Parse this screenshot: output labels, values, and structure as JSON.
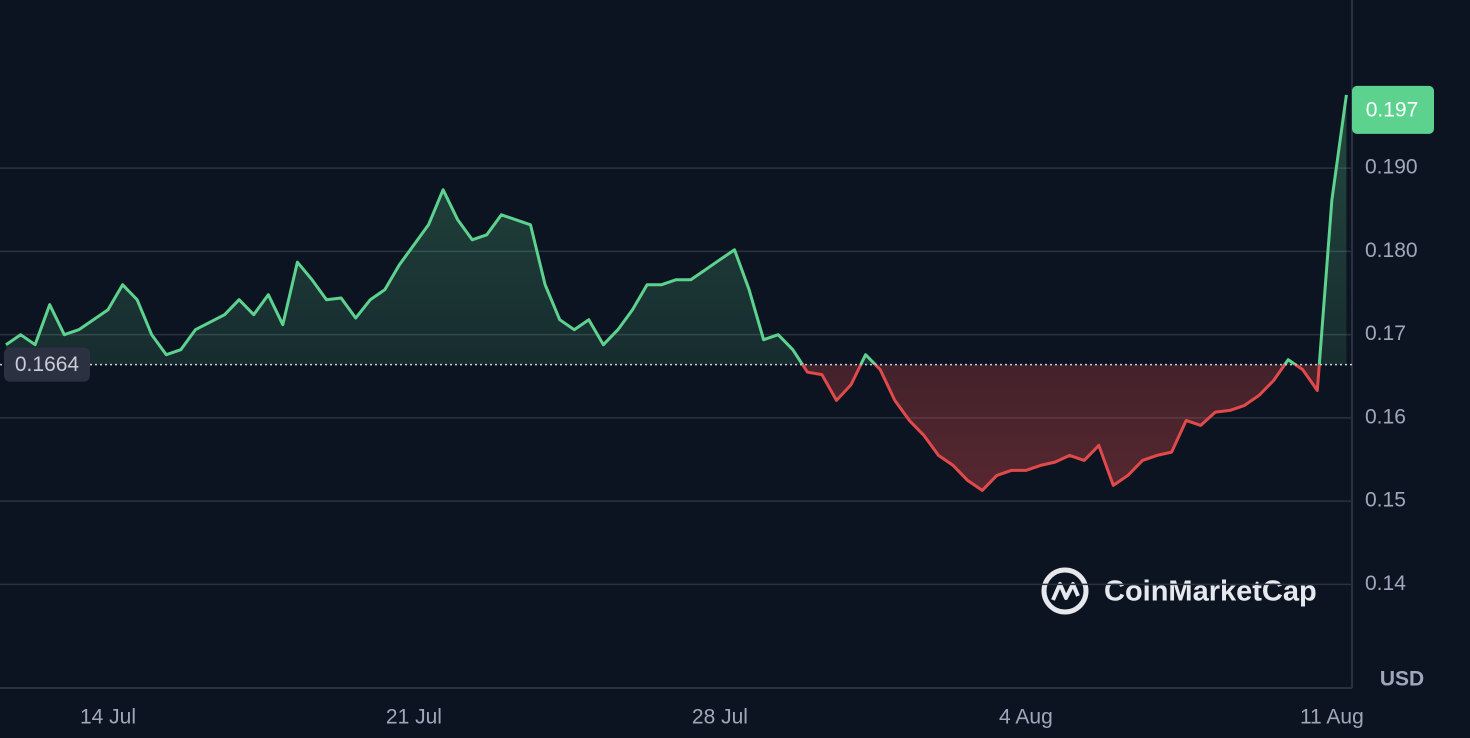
{
  "chart_data": {
    "type": "line",
    "categories": [
      null,
      null,
      null,
      null,
      null,
      null,
      null,
      "14 Jul",
      null,
      null,
      null,
      null,
      null,
      null,
      null,
      null,
      null,
      null,
      null,
      null,
      null,
      null,
      null,
      null,
      null,
      null,
      null,
      null,
      "21 Jul",
      null,
      null,
      null,
      null,
      null,
      null,
      null,
      null,
      null,
      null,
      null,
      null,
      null,
      null,
      null,
      null,
      null,
      null,
      null,
      null,
      "28 Jul",
      null,
      null,
      null,
      null,
      null,
      null,
      null,
      null,
      null,
      null,
      null,
      null,
      null,
      null,
      null,
      null,
      null,
      null,
      null,
      null,
      "4 Aug",
      null,
      null,
      null,
      null,
      null,
      null,
      null,
      null,
      null,
      null,
      null,
      null,
      null,
      null,
      null,
      null,
      null,
      null,
      null,
      null,
      "11 Aug",
      null
    ],
    "values": [
      0.1688,
      0.17,
      0.1688,
      0.1736,
      0.17,
      0.1706,
      0.1718,
      0.173,
      0.176,
      0.1742,
      0.17,
      0.1676,
      0.1682,
      0.1706,
      0.1715,
      0.1724,
      0.1742,
      0.1724,
      0.1748,
      0.1712,
      0.1787,
      0.1766,
      0.1742,
      0.1744,
      0.172,
      0.1742,
      0.1754,
      0.1784,
      0.1808,
      0.1832,
      0.1874,
      0.1838,
      0.1814,
      0.182,
      0.1844,
      0.1838,
      0.1832,
      0.176,
      0.1718,
      0.1706,
      0.1718,
      0.1688,
      0.1706,
      0.173,
      0.176,
      0.176,
      0.1766,
      0.1766,
      0.1778,
      0.179,
      0.1802,
      0.1754,
      0.1694,
      0.17,
      0.1682,
      0.1655,
      0.1652,
      0.1621,
      0.164,
      0.1676,
      0.1658,
      0.1621,
      0.1597,
      0.1579,
      0.1555,
      0.1543,
      0.1525,
      0.1513,
      0.1531,
      0.1537,
      0.1537,
      0.1543,
      0.1547,
      0.1555,
      0.1549,
      0.1567,
      0.1519,
      0.1531,
      0.1549,
      0.1555,
      0.1559,
      0.1597,
      0.1591,
      0.1607,
      0.1609,
      0.1615,
      0.1627,
      0.1645,
      0.167,
      0.1658,
      0.1633,
      0.1862,
      0.1988
    ],
    "baseline": 0.1664,
    "baseline_label": "0.1664",
    "current_price": 0.197,
    "current_price_label": "0.197",
    "color_above": "#5dd28f",
    "color_below": "#e04a4a",
    "ylim": [
      0.1278,
      0.2102
    ],
    "yticks": [
      {
        "value": 0.19,
        "label": "0.190"
      },
      {
        "value": 0.18,
        "label": "0.180"
      },
      0.17,
      0.16,
      0.15,
      0.14
    ],
    "grid": true,
    "currency": "USD",
    "watermark": "CoinMarketCap"
  }
}
